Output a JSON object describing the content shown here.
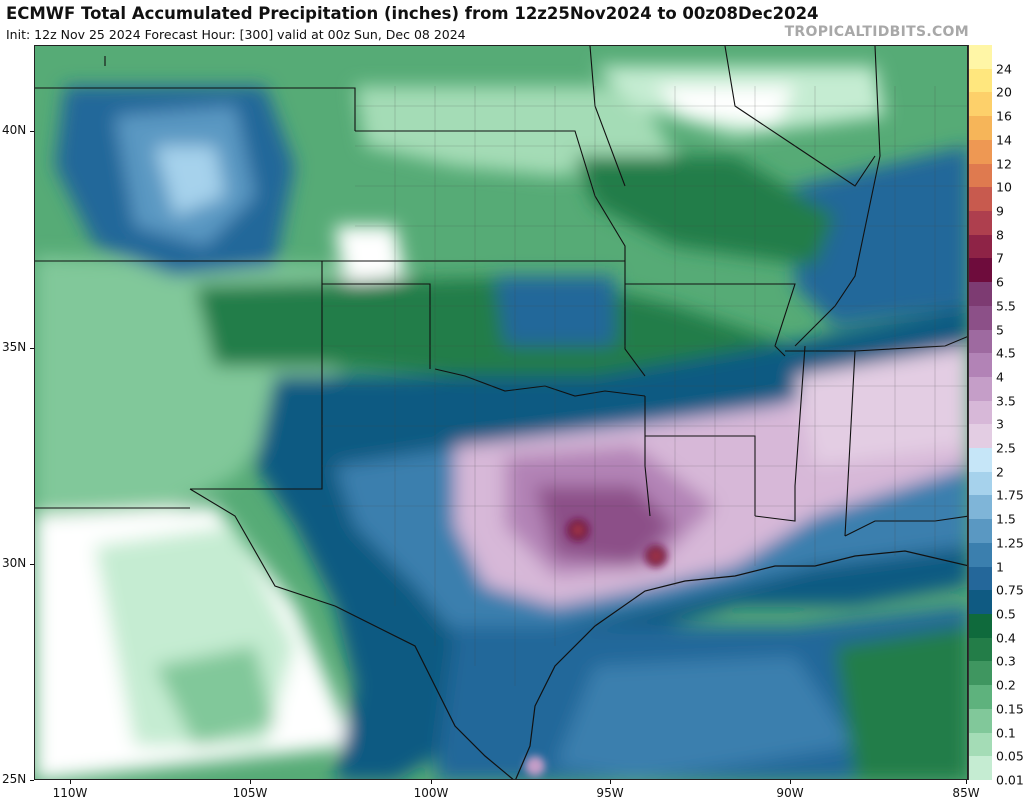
{
  "header": {
    "title": "ECMWF Total Accumulated Precipitation (inches) from 12z25Nov2024 to 00z08Dec2024",
    "subtitle": "Init: 12z Nov 25 2024   Forecast Hour: [300]   valid at 00z Sun, Dec 08 2024",
    "brand": "TROPICALTIDBITS.COM"
  },
  "map": {
    "lat_labels": [
      "40N",
      "35N",
      "30N",
      "25N"
    ],
    "lon_labels": [
      "110W",
      "105W",
      "100W",
      "95W",
      "90W",
      "85W"
    ]
  },
  "colorbar": {
    "levels": [
      "24",
      "20",
      "16",
      "14",
      "12",
      "10",
      "9",
      "8",
      "7",
      "6",
      "5.5",
      "5",
      "4.5",
      "4",
      "3.5",
      "3",
      "2.5",
      "2",
      "1.75",
      "1.5",
      "1.25",
      "1",
      "0.75",
      "0.5",
      "0.4",
      "0.3",
      "0.2",
      "0.15",
      "0.1",
      "0.05",
      "0.01"
    ],
    "colors": [
      "#fff6a6",
      "#ffe77e",
      "#fdd06a",
      "#f6b559",
      "#ee9853",
      "#df7a4f",
      "#c85a4e",
      "#ae3f4e",
      "#8e2346",
      "#6e0c3c",
      "#7d3b72",
      "#8c5088",
      "#9e6aa0",
      "#b283b6",
      "#c59ec8",
      "#d7b8d8",
      "#e3cde3",
      "#c6e6f8",
      "#a6d2ec",
      "#7fb5d8",
      "#5a98c2",
      "#3b7fae",
      "#24679a",
      "#0f5a82",
      "#0f6a3c",
      "#237d48",
      "#3f9660",
      "#5eb27d",
      "#81c89a",
      "#a4dcb6",
      "#c5ecd2"
    ]
  }
}
